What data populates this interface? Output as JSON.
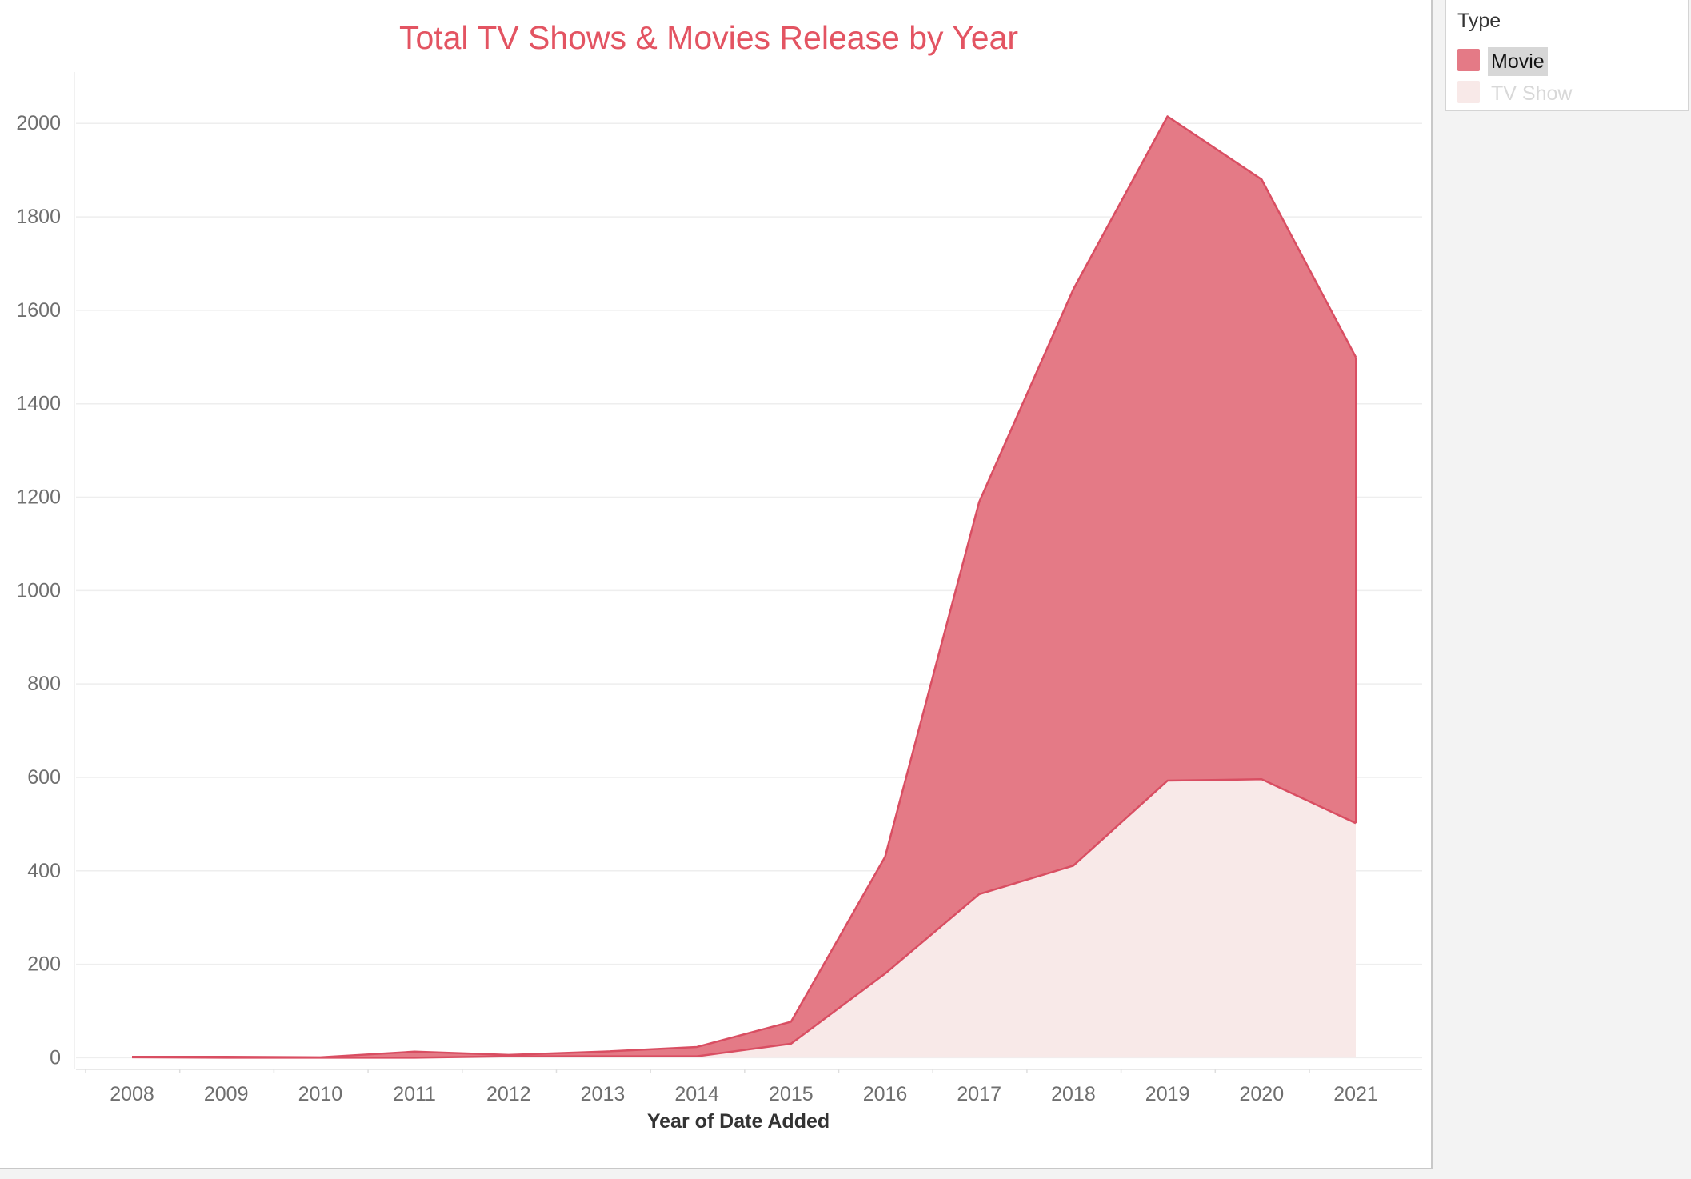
{
  "chart_data": {
    "type": "area",
    "stacked": true,
    "title": "Total TV Shows & Movies Release by Year",
    "xlabel": "Year of Date Added",
    "ylabel": "",
    "x": [
      "2008",
      "2009",
      "2010",
      "2011",
      "2012",
      "2013",
      "2014",
      "2015",
      "2016",
      "2017",
      "2018",
      "2019",
      "2020",
      "2021"
    ],
    "series": [
      {
        "name": "TV Show",
        "values": [
          1,
          0,
          0,
          0,
          3,
          3,
          3,
          30,
          180,
          350,
          411,
          593,
          596,
          502
        ],
        "color": "#f8e9e8"
      },
      {
        "name": "Movie",
        "values": [
          1,
          2,
          1,
          13,
          3,
          10,
          20,
          47,
          250,
          840,
          1234,
          1422,
          1284,
          998
        ],
        "color": "#e47a86"
      }
    ],
    "ylim": [
      -25,
      2110
    ],
    "yticks": [
      0,
      200,
      400,
      600,
      800,
      1000,
      1200,
      1400,
      1600,
      1800,
      2000
    ],
    "grid": true,
    "legend_position": "right",
    "legend_title": "Type"
  },
  "legend": {
    "title": "Type",
    "items": [
      {
        "label": "Movie",
        "color": "#e47a86"
      },
      {
        "label": "TV Show",
        "color": "#f8e9e8"
      }
    ]
  }
}
